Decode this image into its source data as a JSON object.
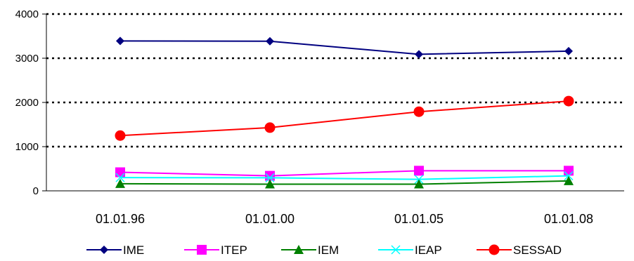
{
  "chart_data": {
    "type": "line",
    "categories": [
      "01.01.96",
      "01.01.00",
      "01.01.05",
      "01.01.08"
    ],
    "ylim": [
      0,
      4000
    ],
    "yticks": [
      "0",
      "1000",
      "2000",
      "3000",
      "4000"
    ],
    "grid": "horizontal dotted",
    "legend_placement": "bottom",
    "series": [
      {
        "name": "IME",
        "color": "#000080",
        "marker": "diamond",
        "values": [
          3390,
          3385,
          3090,
          3160
        ]
      },
      {
        "name": "ITEP",
        "color": "#FF00FF",
        "marker": "square",
        "values": [
          420,
          340,
          455,
          455
        ]
      },
      {
        "name": "IEM",
        "color": "#008000",
        "marker": "triangle",
        "values": [
          160,
          150,
          150,
          225
        ]
      },
      {
        "name": "IEAP",
        "color": "#00FFFF",
        "marker": "x",
        "values": [
          300,
          295,
          260,
          340
        ]
      },
      {
        "name": "SESSAD",
        "color": "#FF0000",
        "marker": "circle",
        "values": [
          1250,
          1430,
          1790,
          2030
        ]
      }
    ]
  }
}
